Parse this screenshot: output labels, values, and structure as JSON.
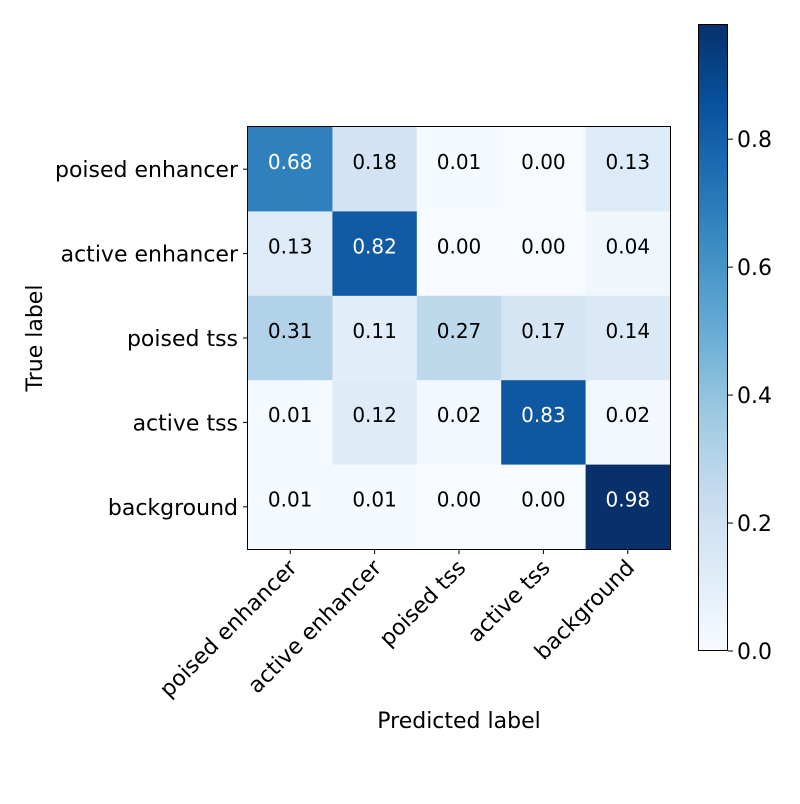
{
  "chart_data": {
    "type": "heatmap",
    "title": "",
    "xlabel": "Predicted label",
    "ylabel": "True label",
    "x_categories": [
      "poised enhancer",
      "active enhancer",
      "poised tss",
      "active tss",
      "background"
    ],
    "y_categories": [
      "poised enhancer",
      "active enhancer",
      "poised tss",
      "active tss",
      "background"
    ],
    "values": [
      [
        0.68,
        0.18,
        0.01,
        0.0,
        0.13
      ],
      [
        0.13,
        0.82,
        0.0,
        0.0,
        0.04
      ],
      [
        0.31,
        0.11,
        0.27,
        0.17,
        0.14
      ],
      [
        0.01,
        0.12,
        0.02,
        0.83,
        0.02
      ],
      [
        0.01,
        0.01,
        0.0,
        0.0,
        0.98
      ]
    ],
    "value_format": "0.00",
    "colormap": "Blues",
    "colormap_stops": [
      "#f7fbff",
      "#deebf7",
      "#c6dbef",
      "#9ecae1",
      "#6baed6",
      "#4292c6",
      "#2171b5",
      "#08519c",
      "#08306b"
    ],
    "color_range": [
      0,
      0.98
    ],
    "colorbar_ticks": [
      "0.0",
      "0.2",
      "0.4",
      "0.6",
      "0.8"
    ],
    "colorbar_tick_values": [
      0,
      0.2,
      0.4,
      0.6,
      0.8
    ],
    "x_tick_rotation_deg": 45,
    "grid": false
  }
}
